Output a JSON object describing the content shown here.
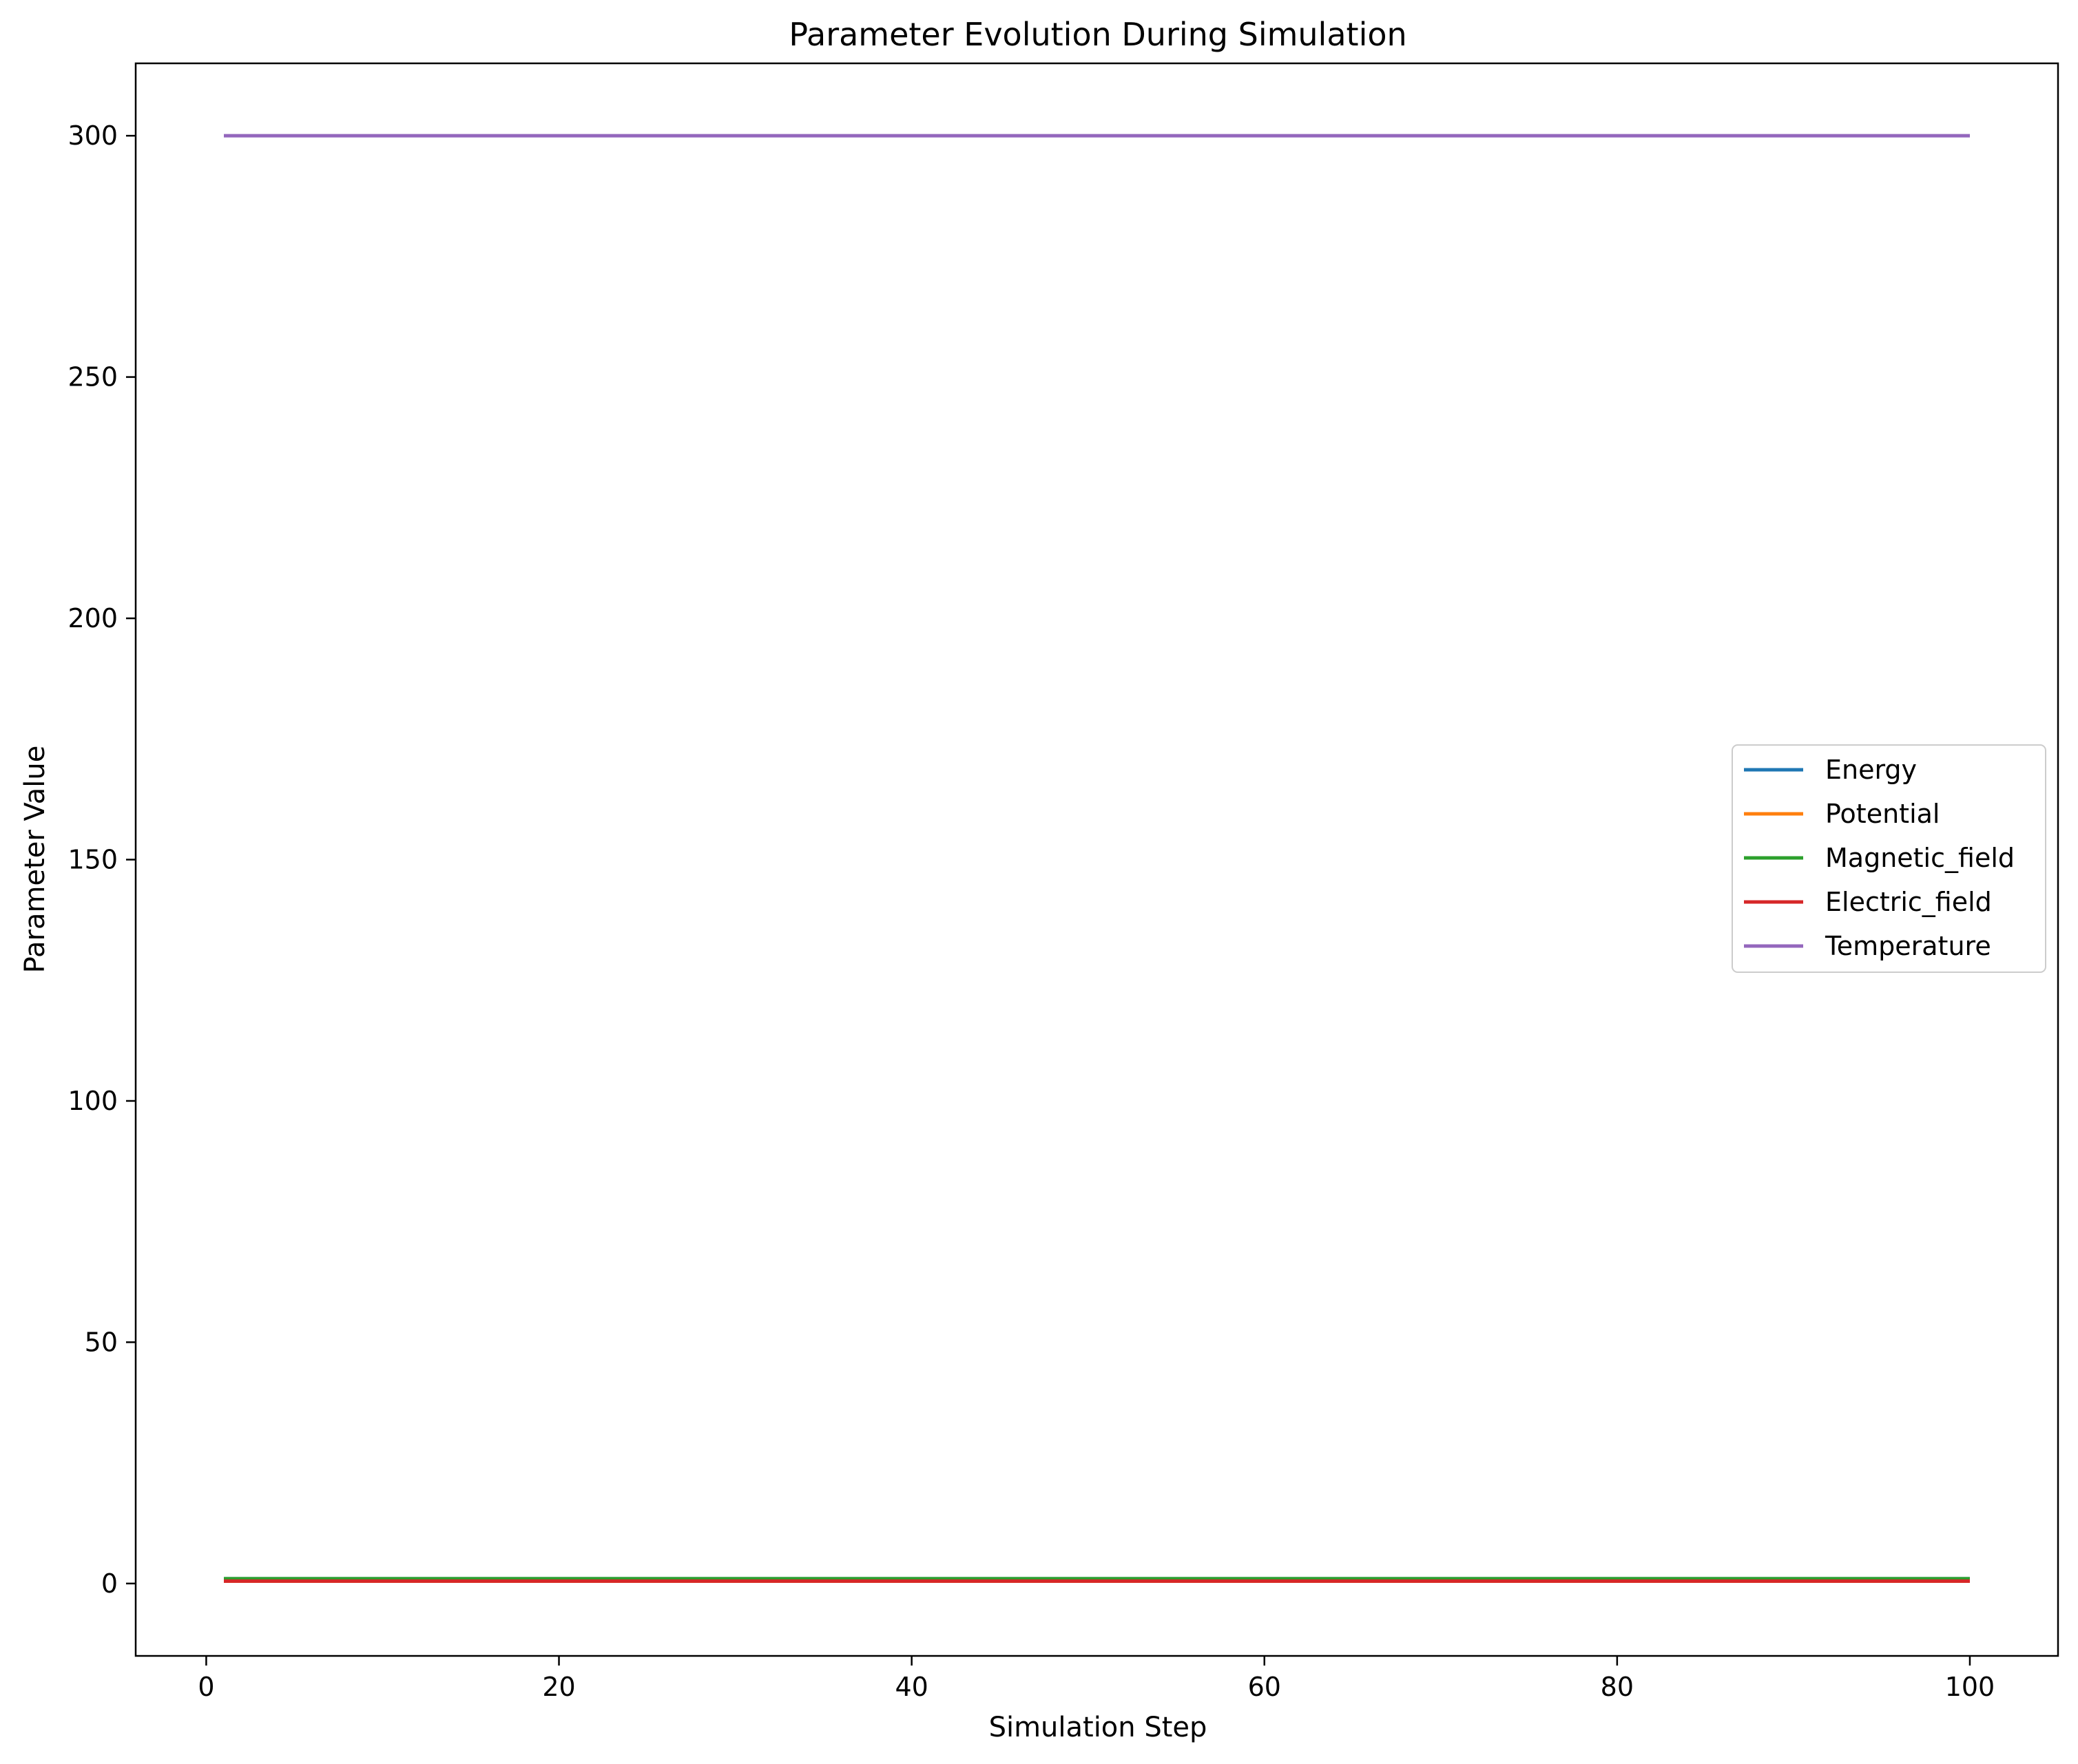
{
  "chart_data": {
    "type": "line",
    "title": "Parameter Evolution During Simulation",
    "xlabel": "Simulation Step",
    "ylabel": "Parameter Value",
    "xlim": [
      -4,
      105
    ],
    "ylim": [
      -15,
      315
    ],
    "xticks": [
      0,
      20,
      40,
      60,
      80,
      100
    ],
    "yticks": [
      0,
      50,
      100,
      150,
      200,
      250,
      300
    ],
    "x_range": [
      1,
      100
    ],
    "grid": false,
    "legend_position": "center-right",
    "series": [
      {
        "name": "Energy",
        "color": "#1f77b4",
        "values": [
          1,
          1
        ]
      },
      {
        "name": "Potential",
        "color": "#ff7f0e",
        "values": [
          0.5,
          0.5
        ]
      },
      {
        "name": "Magnetic_field",
        "color": "#2ca02c",
        "values": [
          1,
          1
        ]
      },
      {
        "name": "Electric_field",
        "color": "#d62728",
        "values": [
          0.5,
          0.5
        ]
      },
      {
        "name": "Temperature",
        "color": "#9467bd",
        "values": [
          300,
          300
        ]
      }
    ]
  }
}
